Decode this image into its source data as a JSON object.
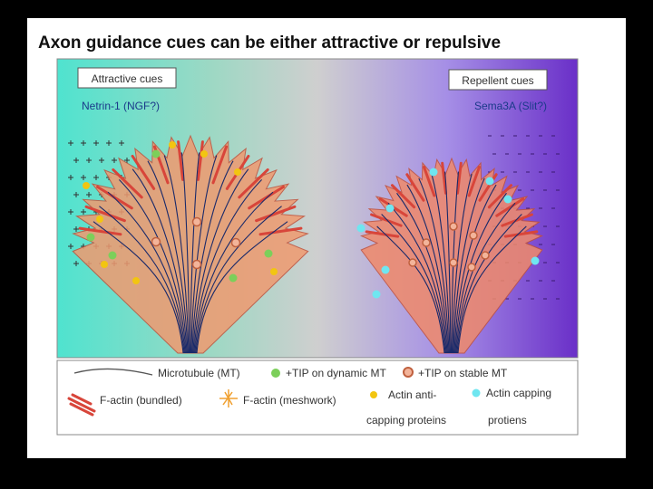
{
  "title": "Axon guidance cues can be either attractive or repulsive",
  "figure": {
    "left_panel": {
      "label": "Attractive cues",
      "cue": "Netrin-1 (NGF?)"
    },
    "right_panel": {
      "label": "Repellent cues",
      "cue": "Sema3A (Slit?)"
    }
  },
  "legend": {
    "items": [
      {
        "lines": [
          "Microtubule (MT)"
        ]
      },
      {
        "lines": [
          "+TIP on dynamic MT"
        ]
      },
      {
        "lines": [
          "+TIP on stable MT"
        ]
      },
      {
        "lines": [
          "F-actin (bundled)"
        ]
      },
      {
        "lines": [
          "F-actin (meshwork)"
        ]
      },
      {
        "lines": [
          "Actin anti-",
          "capping proteins"
        ]
      },
      {
        "lines": [
          "Actin capping",
          "protiens"
        ]
      }
    ]
  }
}
